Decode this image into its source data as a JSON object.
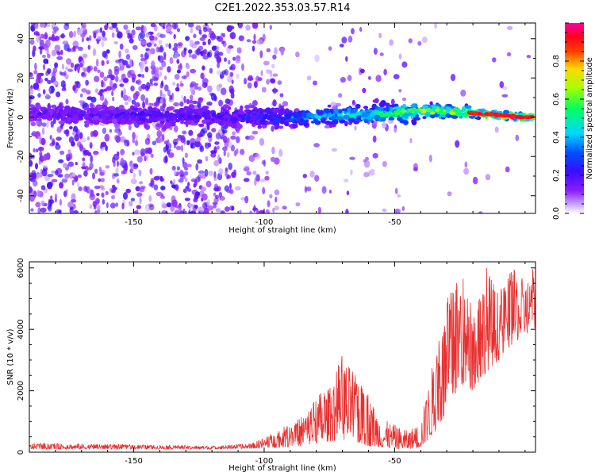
{
  "title": "C2E1.2022.353.03.57.R14",
  "colors": {
    "line": "#e8302f",
    "spectrogram_low": "#e9dcff",
    "spectrogram_mid": "#7a1ee6"
  },
  "chart_data": [
    {
      "type": "heatmap",
      "xlabel": "Height of straight line (km)",
      "ylabel": "Frequency (Hz)",
      "xlim": [
        -190,
        4
      ],
      "ylim": [
        -49,
        48
      ],
      "xticks": [
        -150,
        -100,
        -50
      ],
      "yticks": [
        -40,
        -20,
        0,
        20,
        40
      ],
      "colorbar": {
        "label": "Normalized spectral amplitude",
        "range": [
          0,
          1
        ],
        "ticks": [
          "0.0",
          "0.2",
          "0.4",
          "0.6",
          "0.8"
        ],
        "colormap": "rainbow (white-violet-blue-cyan-green-yellow-red-magenta)"
      },
      "ridge": {
        "description": "dominant frequency band near 0 Hz, amplitude increasing toward 0 km",
        "x": [
          -190,
          -150,
          -110,
          -90,
          -70,
          -50,
          -40,
          -30,
          -20,
          -10,
          0
        ],
        "center_hz": [
          2,
          1,
          0,
          0,
          1,
          2,
          3,
          3,
          2,
          1,
          0
        ],
        "peak_amplitude": [
          0.2,
          0.25,
          0.25,
          0.4,
          0.55,
          0.65,
          0.75,
          0.85,
          0.92,
          0.95,
          0.92
        ]
      },
      "grid": false
    },
    {
      "type": "line",
      "xlabel": "Height of straight line (km)",
      "ylabel": "SNR (10 * v/v)",
      "xlim": [
        -190,
        4
      ],
      "ylim": [
        0,
        6200
      ],
      "xticks": [
        -150,
        -100,
        -50
      ],
      "yticks": [
        0,
        2000,
        4000,
        6000
      ],
      "envelope_x": [
        -190,
        -150,
        -120,
        -105,
        -95,
        -85,
        -80,
        -75,
        -70,
        -65,
        -60,
        -55,
        -50,
        -45,
        -40,
        -35,
        -30,
        -25,
        -20,
        -15,
        -10,
        -5,
        0,
        3
      ],
      "envelope_max": [
        300,
        250,
        200,
        280,
        700,
        1200,
        1900,
        2100,
        3200,
        2500,
        1900,
        1100,
        900,
        700,
        1000,
        3100,
        5000,
        6000,
        4700,
        6200,
        5200,
        6000,
        5600,
        6000
      ],
      "envelope_min": [
        100,
        100,
        100,
        120,
        150,
        200,
        300,
        350,
        400,
        300,
        200,
        150,
        100,
        100,
        150,
        600,
        1200,
        2200,
        2000,
        2600,
        3000,
        3500,
        3800,
        4000
      ],
      "grid": false
    }
  ]
}
